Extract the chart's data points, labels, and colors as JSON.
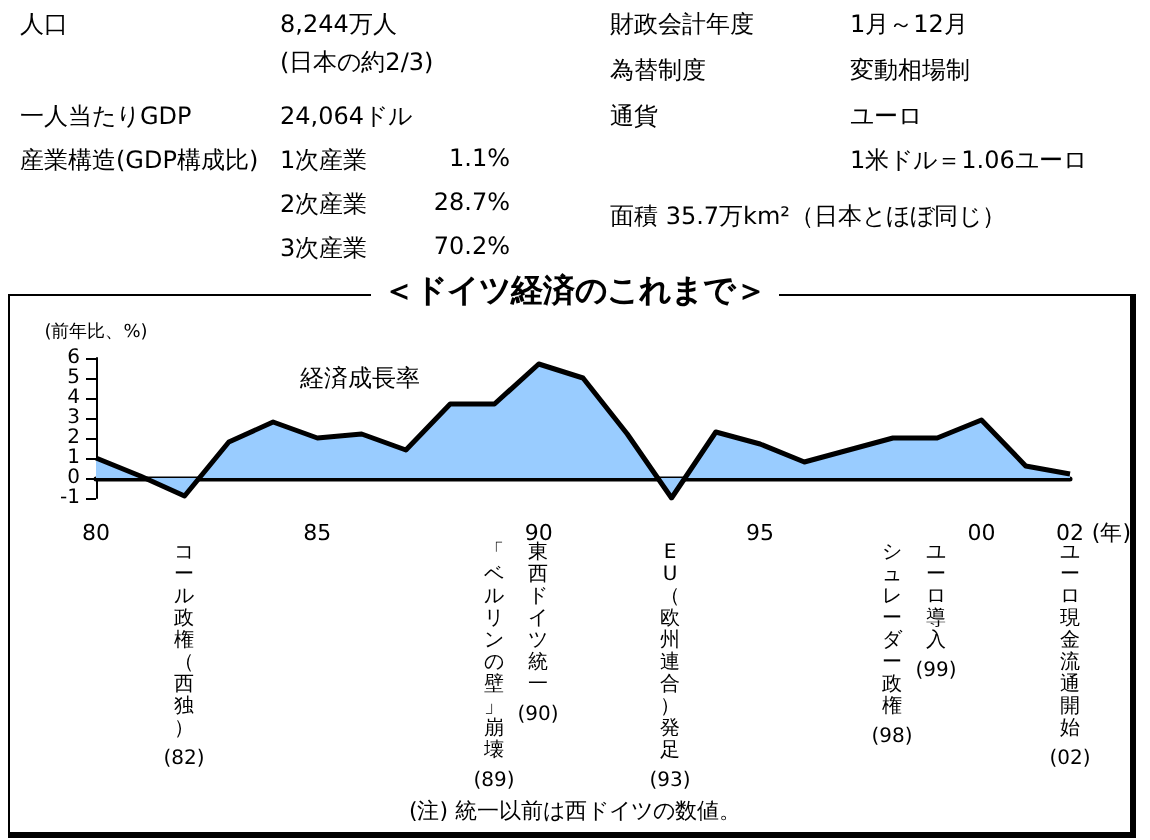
{
  "chart_data": [
    {
      "type": "other",
      "annotations": [
        "人口",
        "8,244万人",
        "(日本の約2/3)",
        "一人当たりGDP",
        "24,064ドル",
        "産業構造(GDP構成比)",
        "1次産業",
        "1.1%",
        "2次産業",
        "28.7%",
        "3次産業",
        "70.2%",
        "財政会計年度",
        "1月～12月",
        "為替制度",
        "変動相場制",
        "通貨",
        "ユーロ",
        "1米ドル＝1.06ユーロ",
        "面積 35.7万km²（日本とほぼ同じ）"
      ]
    },
    {
      "type": "area",
      "title": "＜ドイツ経済のこれまで＞",
      "ylabel": "(前年比、%)",
      "x": [
        1980,
        1981,
        1982,
        1983,
        1984,
        1985,
        1986,
        1987,
        1988,
        1989,
        1990,
        1991,
        1992,
        1993,
        1994,
        1995,
        1996,
        1997,
        1998,
        1999,
        2000,
        2001,
        2002
      ],
      "series": [
        {
          "name": "経済成長率",
          "color": "#99ccff",
          "values": [
            1.0,
            0.1,
            -0.9,
            1.8,
            2.8,
            2.0,
            2.2,
            1.4,
            3.7,
            3.7,
            5.7,
            5.0,
            2.2,
            -1.0,
            2.3,
            1.7,
            0.8,
            1.4,
            2.0,
            2.0,
            2.9,
            0.6,
            0.2
          ]
        }
      ],
      "xlim": [
        1980,
        2002
      ],
      "xticks": [
        {
          "value": 1980,
          "label": "80"
        },
        {
          "value": 1985,
          "label": "85"
        },
        {
          "value": 1990,
          "label": "90"
        },
        {
          "value": 1995,
          "label": "95"
        },
        {
          "value": 2000,
          "label": "00"
        },
        {
          "value": 2002,
          "label": "02"
        }
      ],
      "xlabel": "(年)",
      "ylim": [
        -1,
        6
      ],
      "yticks": [
        -1,
        0,
        1,
        2,
        3,
        4,
        5,
        6
      ],
      "grid": false,
      "legend": false,
      "marker": "none",
      "annotations": [
        "コール政権（西独）",
        "(82)",
        "「ベルリンの壁」崩壊",
        "(89)",
        "東西ドイツ統一",
        "(90)",
        "EU（欧州連合）発足",
        "(93)",
        "シュレーダー政権",
        "(98)",
        "ユーロ導入",
        "(99)",
        "ユーロ現金流通開始",
        "(02)",
        "(注) 統一以前は西ドイツの数値。"
      ]
    }
  ]
}
